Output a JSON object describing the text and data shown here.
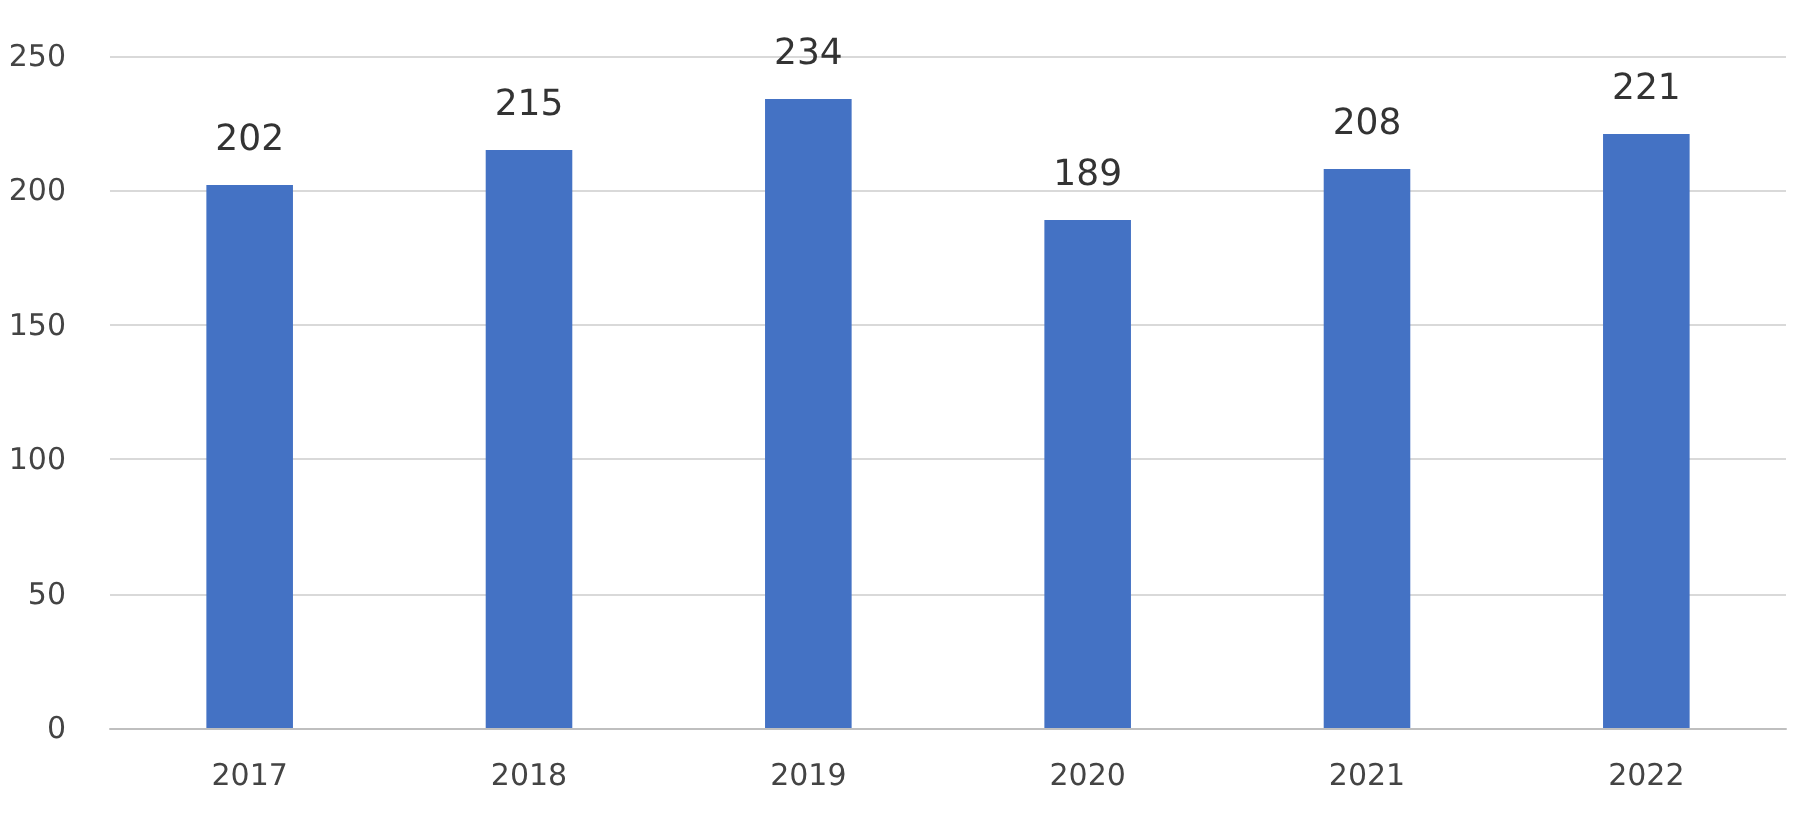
{
  "chart_data": {
    "type": "bar",
    "categories": [
      "2017",
      "2018",
      "2019",
      "2020",
      "2021",
      "2022"
    ],
    "values": [
      202,
      215,
      234,
      189,
      208,
      221
    ],
    "color": "#4472c4",
    "ylim": [
      0,
      250
    ],
    "yticks": [
      0,
      50,
      100,
      150,
      200,
      250
    ],
    "grid": "y",
    "data_labels": true
  }
}
